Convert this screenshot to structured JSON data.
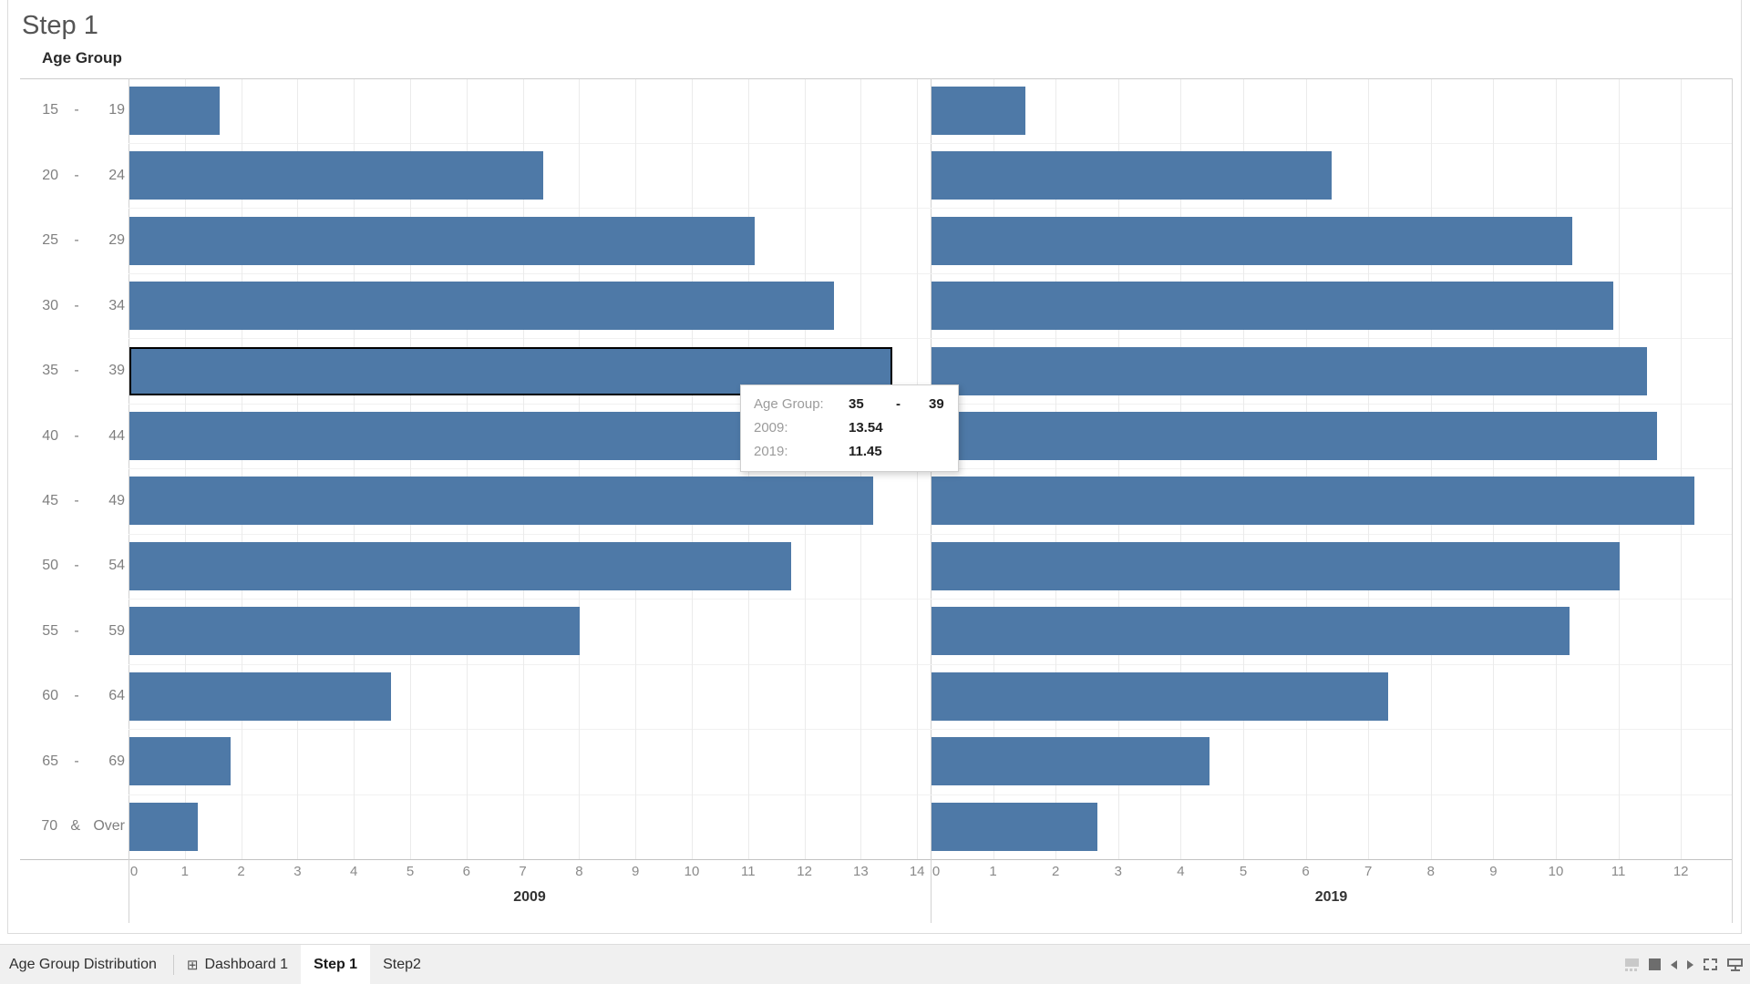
{
  "title": "Step 1",
  "chart_data": {
    "type": "bar",
    "orientation": "horizontal",
    "row_header": "Age Group",
    "categories": [
      [
        "15",
        "-",
        "19"
      ],
      [
        "20",
        "-",
        "24"
      ],
      [
        "25",
        "-",
        "29"
      ],
      [
        "30",
        "-",
        "34"
      ],
      [
        "35",
        "-",
        "39"
      ],
      [
        "40",
        "-",
        "44"
      ],
      [
        "45",
        "-",
        "49"
      ],
      [
        "50",
        "-",
        "54"
      ],
      [
        "55",
        "-",
        "59"
      ],
      [
        "60",
        "-",
        "64"
      ],
      [
        "65",
        "-",
        "69"
      ],
      [
        "70",
        "&",
        "Over"
      ]
    ],
    "panes": [
      {
        "axis_label": "2009",
        "ticks": [
          "0",
          "1",
          "2",
          "3",
          "4",
          "5",
          "6",
          "7",
          "8",
          "9",
          "10",
          "11",
          "12",
          "13",
          "14"
        ],
        "axis_range": [
          0,
          14.2
        ],
        "values": [
          1.6,
          7.35,
          11.1,
          12.5,
          13.54,
          13.4,
          13.2,
          11.75,
          8.0,
          4.65,
          1.8,
          1.22
        ]
      },
      {
        "axis_label": "2019",
        "ticks": [
          "0",
          "1",
          "2",
          "3",
          "4",
          "5",
          "6",
          "7",
          "8",
          "9",
          "10",
          "11",
          "12"
        ],
        "axis_range": [
          0,
          12.8
        ],
        "values": [
          1.5,
          6.4,
          10.25,
          10.9,
          11.45,
          11.6,
          12.2,
          11.0,
          10.2,
          7.3,
          4.45,
          2.65
        ]
      }
    ],
    "highlighted": {
      "pane_index": 0,
      "row_index": 4,
      "category": "35 - 39"
    },
    "grid": true,
    "legend": "none"
  },
  "colors": {
    "bar": "#4e79a7",
    "highlight_border": "#000000"
  },
  "tooltip": {
    "rows": [
      {
        "label": "Age Group:",
        "tokens": [
          "35",
          "-",
          "39"
        ]
      },
      {
        "label": "2009:",
        "value": "13.54"
      },
      {
        "label": "2019:",
        "value": "11.45"
      }
    ]
  },
  "tabs": {
    "items": [
      {
        "label": "Age Group Distribution",
        "active": false
      },
      {
        "label": "Dashboard 1",
        "icon": "dashboard-grid-icon",
        "icon_glyph": "⊞",
        "active": false
      },
      {
        "label": "Step 1",
        "active": true
      },
      {
        "label": "Step2",
        "active": false
      }
    ]
  },
  "controls": {
    "names": [
      "sheet-sorter",
      "show-tabs",
      "previous-sheet",
      "next-sheet",
      "fullscreen",
      "presentation-mode"
    ]
  }
}
